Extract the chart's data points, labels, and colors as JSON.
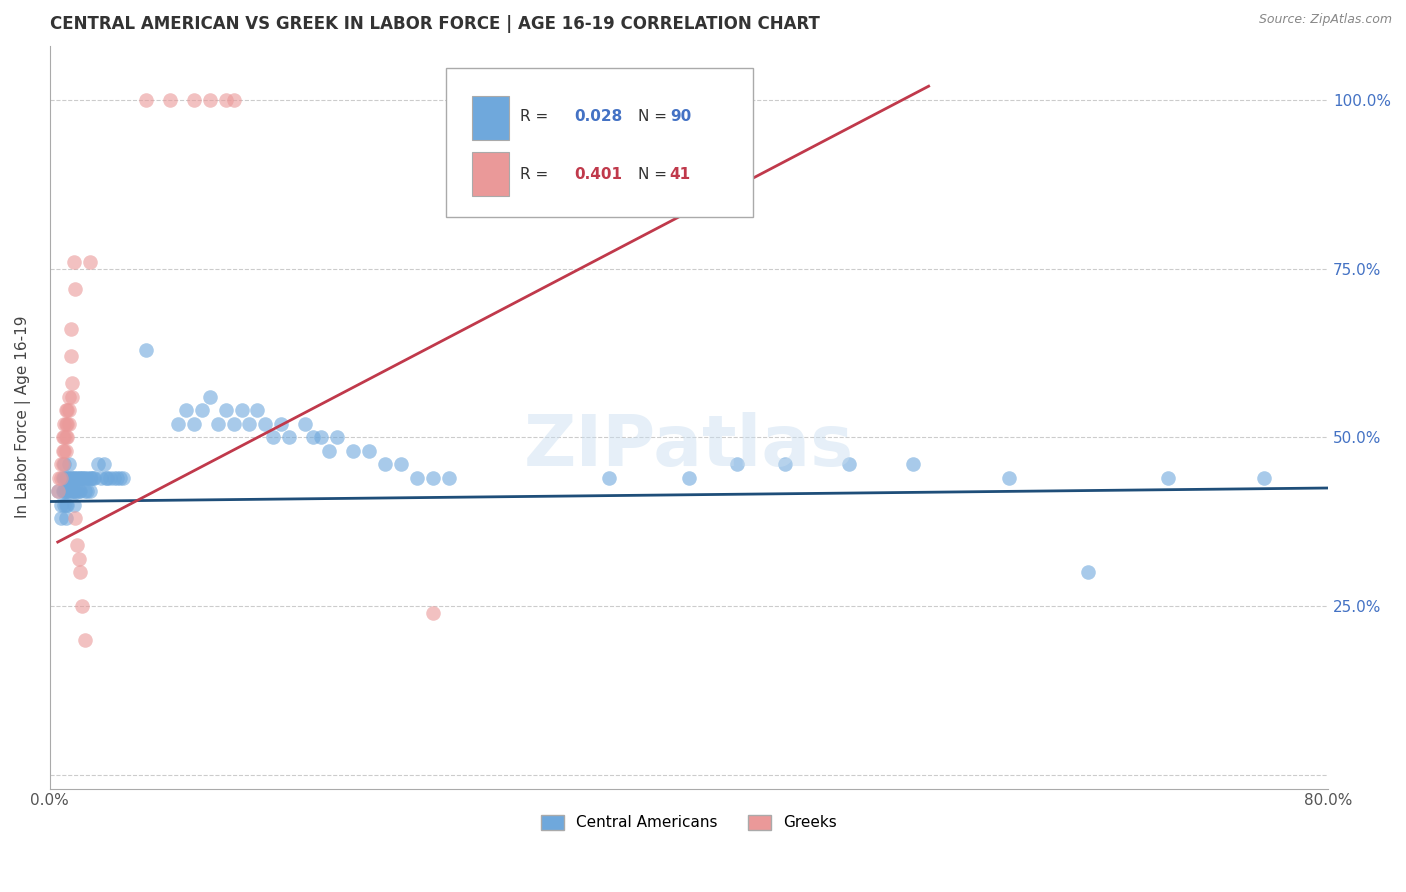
{
  "title": "CENTRAL AMERICAN VS GREEK IN LABOR FORCE | AGE 16-19 CORRELATION CHART",
  "source": "Source: ZipAtlas.com",
  "ylabel": "In Labor Force | Age 16-19",
  "xlim": [
    0.0,
    0.8
  ],
  "ylim": [
    -0.02,
    1.08
  ],
  "xticks": [
    0.0,
    0.1,
    0.2,
    0.3,
    0.4,
    0.5,
    0.6,
    0.7,
    0.8
  ],
  "yticks": [
    0.0,
    0.25,
    0.5,
    0.75,
    1.0
  ],
  "yticklabels_right": [
    "",
    "25.0%",
    "50.0%",
    "75.0%",
    "100.0%"
  ],
  "blue_R": 0.028,
  "blue_N": 90,
  "pink_R": 0.401,
  "pink_N": 41,
  "blue_color": "#6fa8dc",
  "pink_color": "#ea9999",
  "blue_line_color": "#1f4e79",
  "pink_line_color": "#c0394b",
  "legend_blue_text_color": "#4472c4",
  "legend_pink_text_color": "#c0394b",
  "watermark": "ZIPatlas",
  "blue_scatter": [
    [
      0.005,
      0.42
    ],
    [
      0.007,
      0.4
    ],
    [
      0.007,
      0.38
    ],
    [
      0.008,
      0.44
    ],
    [
      0.008,
      0.42
    ],
    [
      0.009,
      0.46
    ],
    [
      0.009,
      0.44
    ],
    [
      0.009,
      0.42
    ],
    [
      0.009,
      0.4
    ],
    [
      0.01,
      0.44
    ],
    [
      0.01,
      0.42
    ],
    [
      0.01,
      0.4
    ],
    [
      0.01,
      0.38
    ],
    [
      0.011,
      0.44
    ],
    [
      0.011,
      0.42
    ],
    [
      0.011,
      0.4
    ],
    [
      0.012,
      0.46
    ],
    [
      0.012,
      0.44
    ],
    [
      0.012,
      0.42
    ],
    [
      0.013,
      0.44
    ],
    [
      0.013,
      0.42
    ],
    [
      0.014,
      0.44
    ],
    [
      0.014,
      0.42
    ],
    [
      0.015,
      0.44
    ],
    [
      0.015,
      0.42
    ],
    [
      0.015,
      0.4
    ],
    [
      0.016,
      0.44
    ],
    [
      0.016,
      0.42
    ],
    [
      0.017,
      0.44
    ],
    [
      0.017,
      0.42
    ],
    [
      0.018,
      0.44
    ],
    [
      0.018,
      0.42
    ],
    [
      0.019,
      0.44
    ],
    [
      0.019,
      0.42
    ],
    [
      0.02,
      0.44
    ],
    [
      0.021,
      0.44
    ],
    [
      0.022,
      0.44
    ],
    [
      0.022,
      0.42
    ],
    [
      0.023,
      0.44
    ],
    [
      0.023,
      0.42
    ],
    [
      0.025,
      0.44
    ],
    [
      0.025,
      0.42
    ],
    [
      0.026,
      0.44
    ],
    [
      0.027,
      0.44
    ],
    [
      0.028,
      0.44
    ],
    [
      0.03,
      0.46
    ],
    [
      0.032,
      0.44
    ],
    [
      0.034,
      0.46
    ],
    [
      0.035,
      0.44
    ],
    [
      0.036,
      0.44
    ],
    [
      0.038,
      0.44
    ],
    [
      0.04,
      0.44
    ],
    [
      0.042,
      0.44
    ],
    [
      0.044,
      0.44
    ],
    [
      0.046,
      0.44
    ],
    [
      0.06,
      0.63
    ],
    [
      0.08,
      0.52
    ],
    [
      0.085,
      0.54
    ],
    [
      0.09,
      0.52
    ],
    [
      0.095,
      0.54
    ],
    [
      0.1,
      0.56
    ],
    [
      0.105,
      0.52
    ],
    [
      0.11,
      0.54
    ],
    [
      0.115,
      0.52
    ],
    [
      0.12,
      0.54
    ],
    [
      0.125,
      0.52
    ],
    [
      0.13,
      0.54
    ],
    [
      0.135,
      0.52
    ],
    [
      0.14,
      0.5
    ],
    [
      0.145,
      0.52
    ],
    [
      0.15,
      0.5
    ],
    [
      0.16,
      0.52
    ],
    [
      0.165,
      0.5
    ],
    [
      0.17,
      0.5
    ],
    [
      0.175,
      0.48
    ],
    [
      0.18,
      0.5
    ],
    [
      0.19,
      0.48
    ],
    [
      0.2,
      0.48
    ],
    [
      0.21,
      0.46
    ],
    [
      0.22,
      0.46
    ],
    [
      0.23,
      0.44
    ],
    [
      0.24,
      0.44
    ],
    [
      0.25,
      0.44
    ],
    [
      0.35,
      0.44
    ],
    [
      0.4,
      0.44
    ],
    [
      0.43,
      0.46
    ],
    [
      0.46,
      0.46
    ],
    [
      0.5,
      0.46
    ],
    [
      0.54,
      0.46
    ],
    [
      0.6,
      0.44
    ],
    [
      0.65,
      0.3
    ],
    [
      0.7,
      0.44
    ],
    [
      0.76,
      0.44
    ]
  ],
  "pink_scatter": [
    [
      0.005,
      0.42
    ],
    [
      0.006,
      0.44
    ],
    [
      0.007,
      0.46
    ],
    [
      0.007,
      0.44
    ],
    [
      0.008,
      0.5
    ],
    [
      0.008,
      0.48
    ],
    [
      0.008,
      0.46
    ],
    [
      0.009,
      0.52
    ],
    [
      0.009,
      0.5
    ],
    [
      0.009,
      0.48
    ],
    [
      0.01,
      0.54
    ],
    [
      0.01,
      0.52
    ],
    [
      0.01,
      0.5
    ],
    [
      0.01,
      0.48
    ],
    [
      0.011,
      0.54
    ],
    [
      0.011,
      0.52
    ],
    [
      0.011,
      0.5
    ],
    [
      0.012,
      0.56
    ],
    [
      0.012,
      0.54
    ],
    [
      0.012,
      0.52
    ],
    [
      0.013,
      0.66
    ],
    [
      0.013,
      0.62
    ],
    [
      0.014,
      0.58
    ],
    [
      0.014,
      0.56
    ],
    [
      0.015,
      0.76
    ],
    [
      0.016,
      0.72
    ],
    [
      0.016,
      0.38
    ],
    [
      0.017,
      0.34
    ],
    [
      0.018,
      0.32
    ],
    [
      0.019,
      0.3
    ],
    [
      0.02,
      0.25
    ],
    [
      0.022,
      0.2
    ],
    [
      0.025,
      0.76
    ],
    [
      0.06,
      1.0
    ],
    [
      0.075,
      1.0
    ],
    [
      0.09,
      1.0
    ],
    [
      0.1,
      1.0
    ],
    [
      0.11,
      1.0
    ],
    [
      0.115,
      1.0
    ],
    [
      0.24,
      0.24
    ]
  ],
  "blue_trend_x": [
    0.0,
    0.8
  ],
  "blue_trend_y": [
    0.405,
    0.425
  ],
  "pink_trend_x": [
    0.005,
    0.55
  ],
  "pink_trend_y": [
    0.345,
    1.02
  ]
}
